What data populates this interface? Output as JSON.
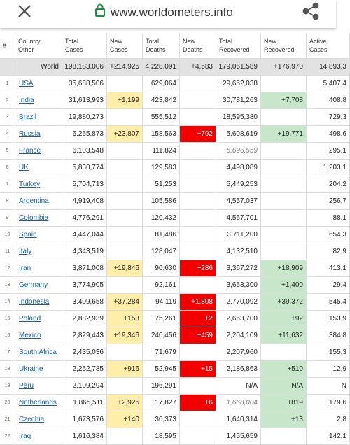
{
  "browser": {
    "url": "www.worldometers.info"
  },
  "table": {
    "header": [
      [
        "#"
      ],
      [
        "Country,",
        "Other"
      ],
      [
        "Total",
        "Cases"
      ],
      [
        "New",
        "Cases"
      ],
      [
        "Total",
        "Deaths"
      ],
      [
        "New",
        "Deaths"
      ],
      [
        "Total",
        "Recovered"
      ],
      [
        "New",
        "Recovered"
      ],
      [
        "Active",
        "Cases"
      ]
    ],
    "world": [
      null,
      "World",
      "198,183,006",
      "+214,925",
      "4,228,091",
      "+4,583",
      "179,061,589",
      "+176,970",
      "14,893,3"
    ],
    "rows": [
      [
        "1",
        "USA",
        "35,688,506",
        null,
        "629,064",
        null,
        "29,652,038",
        null,
        "5,407,4"
      ],
      [
        "2",
        "India",
        "31,613,993",
        "+1,199",
        "423,842",
        null,
        "30,781,263",
        "+7,708",
        "408,8"
      ],
      [
        "3",
        "Brazil",
        "19,880,273",
        null,
        "555,512",
        null,
        "18,595,380",
        null,
        "729,3"
      ],
      [
        "4",
        "Russia",
        "6,265,873",
        "+23,807",
        "158,563",
        "+792",
        "5,608,619",
        "+19,771",
        "498,6"
      ],
      [
        "5",
        "France",
        "6,103,548",
        null,
        "111,824",
        null,
        "5,696,559",
        null,
        "295,1"
      ],
      [
        "6",
        "UK",
        "5,830,774",
        null,
        "129,583",
        null,
        "4,498,089",
        null,
        "1,203,1"
      ],
      [
        "7",
        "Turkey",
        "5,704,713",
        null,
        "51,253",
        null,
        "5,449,253",
        null,
        "204,2"
      ],
      [
        "8",
        "Argentina",
        "4,919,408",
        null,
        "105,586",
        null,
        "4,557,037",
        null,
        "256,7"
      ],
      [
        "9",
        "Colombia",
        "4,776,291",
        null,
        "120,432",
        null,
        "4,567,701",
        null,
        "88,1"
      ],
      [
        "10",
        "Spain",
        "4,447,044",
        null,
        "81,486",
        null,
        "3,711,200",
        null,
        "654,3"
      ],
      [
        "11",
        "Italy",
        "4,343,519",
        null,
        "128,047",
        null,
        "4,132,510",
        null,
        "82,9"
      ],
      [
        "12",
        "Iran",
        "3,871,008",
        "+19,846",
        "90,630",
        "+286",
        "3,367,272",
        "+18,909",
        "413,1"
      ],
      [
        "13",
        "Germany",
        "3,774,905",
        null,
        "92,161",
        null,
        "3,653,300",
        "+1,400",
        "29,4"
      ],
      [
        "14",
        "Indonesia",
        "3,409,658",
        "+37,284",
        "94,119",
        "+1,808",
        "2,770,092",
        "+39,372",
        "545,4"
      ],
      [
        "15",
        "Poland",
        "2,882,939",
        "+153",
        "75,261",
        "+2",
        "2,653,700",
        "+92",
        "153,9"
      ],
      [
        "16",
        "Mexico",
        "2,829,443",
        "+19,346",
        "240,456",
        "+459",
        "2,204,109",
        "+11,632",
        "384,8"
      ],
      [
        "17",
        "South Africa",
        "2,435,036",
        null,
        "71,679",
        null,
        "2,207,960",
        null,
        "155,3"
      ],
      [
        "18",
        "Ukraine",
        "2,252,785",
        "+916",
        "52,945",
        "+15",
        "2,186,863",
        "+510",
        "12,9"
      ],
      [
        "19",
        "Peru",
        "2,109,294",
        null,
        "196,291",
        null,
        "N/A",
        "N/A",
        "N"
      ],
      [
        "20",
        "Netherlands",
        "1,865,511",
        "+2,925",
        "17,827",
        "+6",
        "1,668,004",
        "+819",
        "179,6"
      ],
      [
        "21",
        "Czechia",
        "1,673,576",
        "+140",
        "30,373",
        null,
        "1,640,314",
        "+13",
        "2,8"
      ],
      [
        "22",
        "Iraq",
        "1,616,384",
        null,
        "18,595",
        null,
        "1,455,659",
        null,
        "142,1"
      ]
    ]
  }
}
